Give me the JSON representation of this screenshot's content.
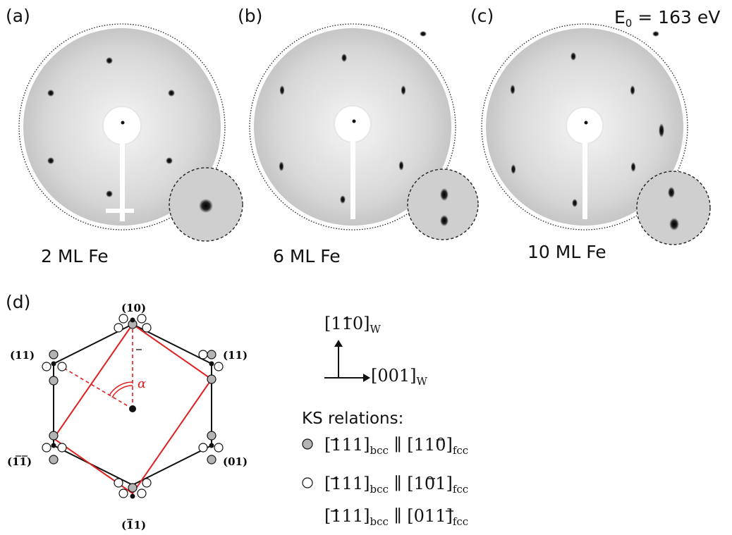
{
  "panels": [
    {
      "label": "(a)",
      "caption": "2 ML Fe"
    },
    {
      "label": "(b)",
      "caption": "6 ML Fe"
    },
    {
      "label": "(c)",
      "caption": "10 ML Fe"
    }
  ],
  "energy": {
    "prefix": "E",
    "sub": "0",
    "rest": " = 163 eV"
  },
  "diagram": {
    "label": "(d)",
    "spots": [
      "(10)",
      "(11)",
      "(01)",
      "(11)",
      "(11)",
      "(11)"
    ],
    "alpha": "α"
  },
  "axes": {
    "up": "[110]",
    "right": "[001]",
    "sub": "W"
  },
  "ks": {
    "title": "KS relations:",
    "rows": [
      {
        "a": "[111]",
        "a_sub": "bcc",
        "sep": " ∥ ",
        "b": "[110]",
        "b_sub": "fcc"
      },
      {
        "a": "[111]",
        "a_sub": "bcc",
        "sep": " ∥ ",
        "b": "[101]",
        "b_sub": "fcc"
      },
      {
        "a": "[111]",
        "a_sub": "bcc",
        "sep": " ∥ ",
        "b": "[011]",
        "b_sub": "fcc"
      }
    ]
  },
  "colors": {
    "red": "#e02020",
    "gray": "#b4b4b4",
    "dark": "#111111"
  }
}
